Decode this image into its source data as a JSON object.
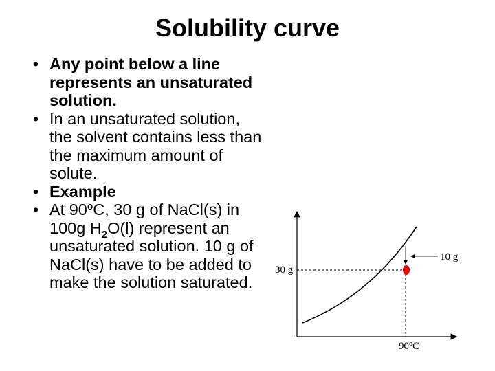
{
  "title": "Solubility curve",
  "bullets": [
    "Any point below a line represents an unsaturated solution.",
    "In an unsaturated solution, the solvent contains less than the maximum amount of solute.",
    "Example",
    [
      "At 90",
      "o",
      "C, 30 g of NaCl(s) in 100g H",
      "2",
      "O(l) represent an unsaturated solution. 10 g of NaCl(s) have to be added to make the solution saturated."
    ]
  ],
  "diagram": {
    "y_label": "30 g",
    "arrow_label": "10 g",
    "x_label": [
      "90",
      "o",
      "C"
    ]
  }
}
